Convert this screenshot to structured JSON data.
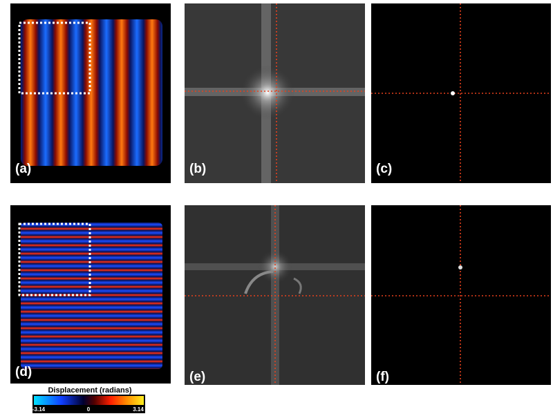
{
  "panels": [
    {
      "label": "(a)"
    },
    {
      "label": "(b)"
    },
    {
      "label": "(c)"
    },
    {
      "label": "(d)"
    },
    {
      "label": "(e)"
    },
    {
      "label": "(f)"
    }
  ],
  "colorbar": {
    "title": "Displacement (radians)",
    "ticks": [
      -3.14,
      0,
      3.14
    ]
  }
}
